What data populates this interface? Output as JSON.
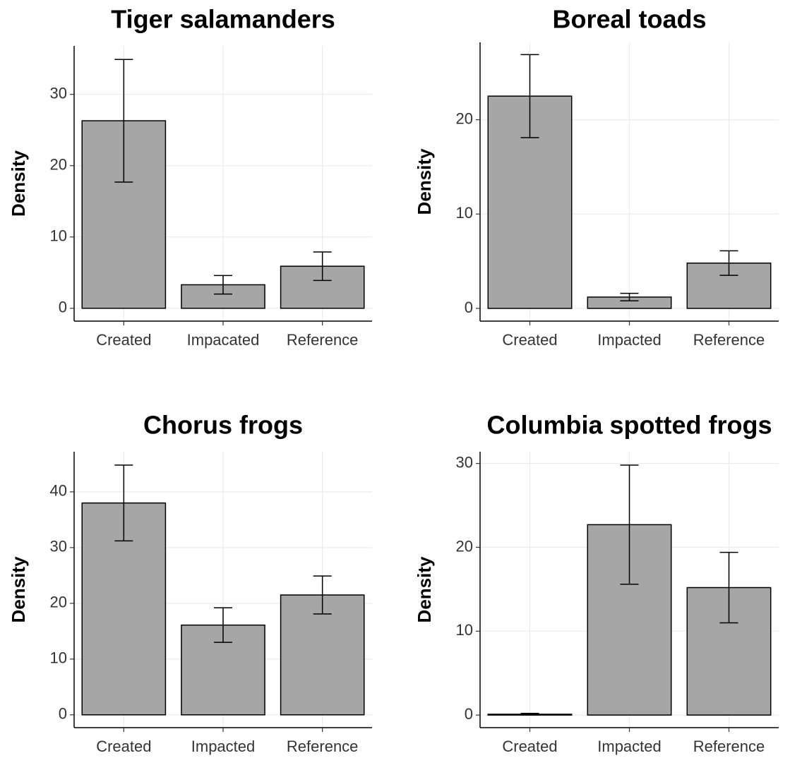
{
  "chart_data": [
    {
      "type": "bar",
      "title": "Tiger salamanders",
      "y_label": "Density",
      "categories": [
        "Created",
        "Impacated",
        "Reference"
      ],
      "values": [
        26.3,
        3.3,
        5.9
      ],
      "errors": [
        8.6,
        1.3,
        2.0
      ],
      "color": "#a6a6a6",
      "ylim": [
        -1.8,
        36.8
      ],
      "yticks": [
        0,
        10,
        20,
        30
      ],
      "grid": true
    },
    {
      "type": "bar",
      "title": "Boreal toads",
      "y_label": "Density",
      "categories": [
        "Created",
        "Impacted",
        "Reference"
      ],
      "values": [
        22.5,
        1.2,
        4.8
      ],
      "errors": [
        4.4,
        0.4,
        1.3
      ],
      "color": "#a6a6a6",
      "ylim": [
        -1.35,
        28.2
      ],
      "yticks": [
        0,
        10,
        20
      ],
      "grid": true
    },
    {
      "type": "bar",
      "title": "Chorus frogs",
      "y_label": "Density",
      "categories": [
        "Created",
        "Impacted",
        "Reference"
      ],
      "values": [
        38.0,
        16.1,
        21.5
      ],
      "errors": [
        6.8,
        3.1,
        3.4
      ],
      "color": "#a6a6a6",
      "ylim": [
        -2.3,
        47.2
      ],
      "yticks": [
        0,
        10,
        20,
        30,
        40
      ],
      "grid": true
    },
    {
      "type": "bar",
      "title": "Columbia spotted frogs",
      "y_label": "Density",
      "categories": [
        "Created",
        "Impacted",
        "Reference"
      ],
      "values": [
        0.1,
        22.7,
        15.2
      ],
      "errors": [
        0.1,
        7.1,
        4.2
      ],
      "color": "#a6a6a6",
      "ylim": [
        -1.5,
        31.4
      ],
      "yticks": [
        0,
        10,
        20,
        30
      ],
      "grid": true
    }
  ]
}
